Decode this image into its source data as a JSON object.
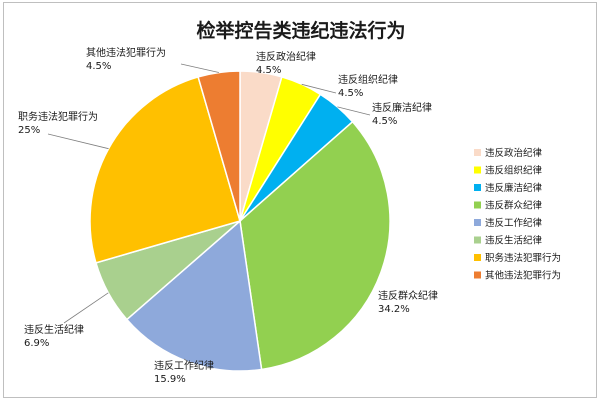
{
  "chart_data": {
    "type": "pie",
    "title": "检举控告类违纪违法行为",
    "categories": [
      "违反政治纪律",
      "违反组织纪律",
      "违反廉洁纪律",
      "违反群众纪律",
      "违反工作纪律",
      "违反生活纪律",
      "职务违法犯罪行为",
      "其他违法犯罪行为"
    ],
    "values": [
      4.5,
      4.5,
      4.5,
      34.2,
      15.9,
      6.9,
      25,
      4.5
    ],
    "value_labels": [
      "4.5%",
      "4.5%",
      "4.5%",
      "34.2%",
      "15.9%",
      "6.9%",
      "25%",
      "4.5%"
    ],
    "colors": [
      "#FADBC8",
      "#FFFF00",
      "#00B0F0",
      "#92D050",
      "#8EA9DB",
      "#A9D08E",
      "#FFC000",
      "#ED7D31"
    ],
    "legend_position": "right"
  }
}
